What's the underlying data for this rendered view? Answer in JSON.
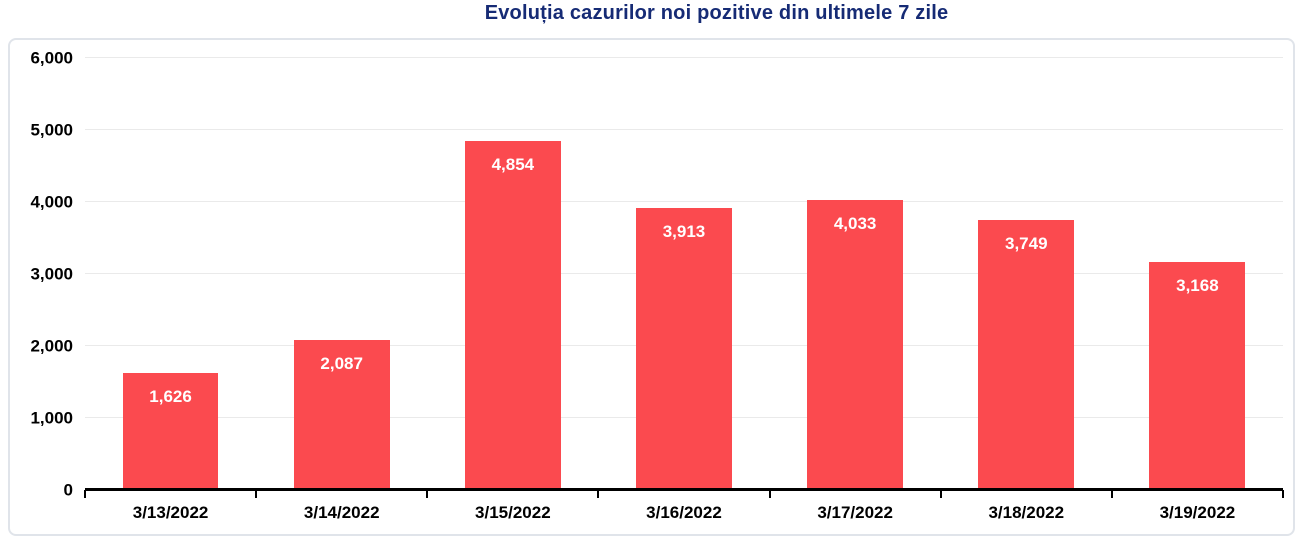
{
  "title": "Evoluția cazurilor noi pozitive din ultimele 7 zile",
  "colors": {
    "bar": "#fb4a4f",
    "title": "#162b75",
    "gridline": "#eaeaea",
    "axis": "#000000",
    "card_border": "#e0e4ea",
    "bar_value_text": "#ffffff",
    "axis_tick_text": "#000000"
  },
  "chart_data": {
    "type": "bar",
    "title": "Evoluția cazurilor noi pozitive din ultimele 7 zile",
    "categories": [
      "3/13/2022",
      "3/14/2022",
      "3/15/2022",
      "3/16/2022",
      "3/17/2022",
      "3/18/2022",
      "3/19/2022"
    ],
    "values": [
      1626,
      2087,
      4854,
      3913,
      4033,
      3749,
      3168
    ],
    "value_labels": [
      "1,626",
      "2,087",
      "4,854",
      "3,913",
      "4,033",
      "3,749",
      "3,168"
    ],
    "xlabel": "",
    "ylabel": "",
    "ylim": [
      0,
      6000
    ],
    "ytick_step": 1000,
    "ytick_labels": [
      "0",
      "1,000",
      "2,000",
      "3,000",
      "4,000",
      "5,000",
      "6,000"
    ],
    "grid": true,
    "legend": false,
    "value_labels_position": "inside-top",
    "bar_label_color": "#ffffff"
  }
}
